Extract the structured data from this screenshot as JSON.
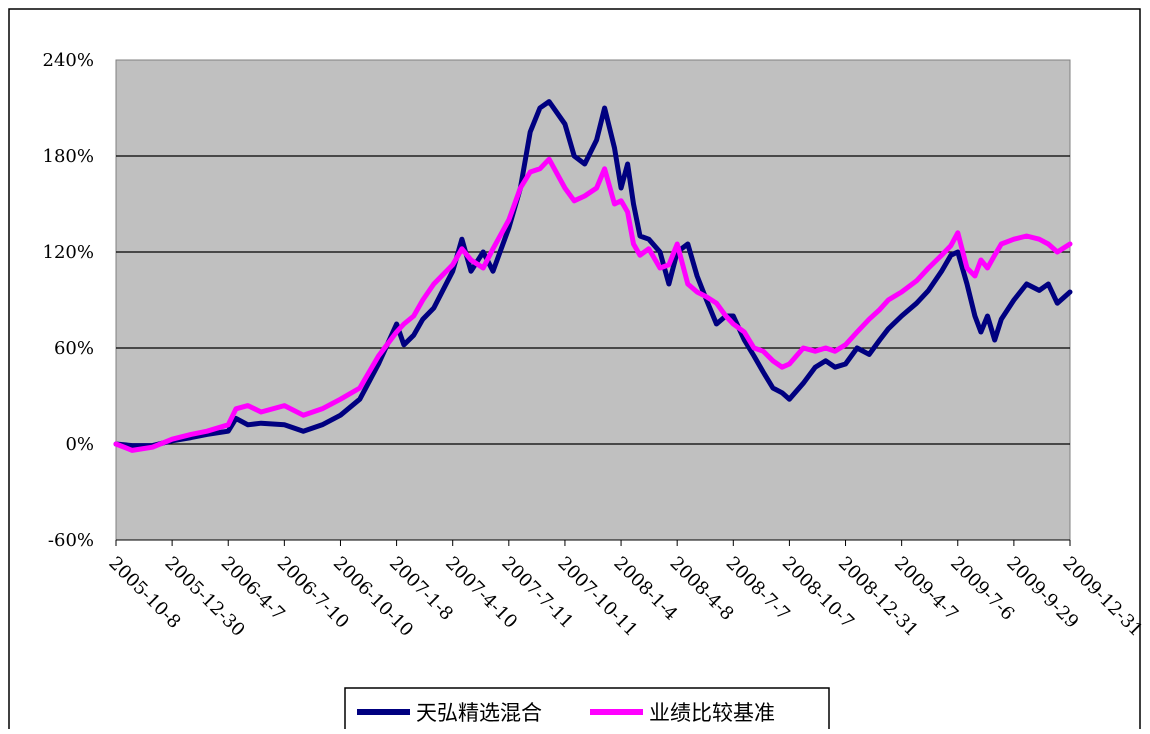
{
  "chart_data": {
    "type": "line",
    "title": "",
    "xlabel": "",
    "ylabel": "",
    "ylim": [
      -60,
      240
    ],
    "y_ticks": [
      -60,
      0,
      60,
      120,
      180,
      240
    ],
    "y_tick_labels": [
      "-60%",
      "0%",
      "60%",
      "120%",
      "180%",
      "240%"
    ],
    "y_unit": "%",
    "x_tick_labels": [
      "2005-10-8",
      "2005-12-30",
      "2006-4-7",
      "2006-7-10",
      "2006-10-10",
      "2007-1-8",
      "2007-4-10",
      "2007-7-11",
      "2007-10-11",
      "2008-1-4",
      "2008-4-8",
      "2008-7-7",
      "2008-10-7",
      "2008-12-31",
      "2009-4-7",
      "2009-7-6",
      "2009-9-29",
      "2009-12-31"
    ],
    "grid": true,
    "legend_position": "bottom",
    "colors": {
      "plot_background": "#c0c0c0",
      "gridline": "#000000"
    },
    "series": [
      {
        "name": "天弘精选混合",
        "color": "#000080",
        "x": [
          "2005-10-8",
          "2005-11-1",
          "2005-12-1",
          "2005-12-30",
          "2006-2-1",
          "2006-3-1",
          "2006-4-7",
          "2006-4-20",
          "2006-5-10",
          "2006-6-1",
          "2006-7-10",
          "2006-8-10",
          "2006-9-10",
          "2006-10-10",
          "2006-11-10",
          "2006-12-10",
          "2007-1-8",
          "2007-1-20",
          "2007-2-5",
          "2007-2-20",
          "2007-3-10",
          "2007-4-10",
          "2007-4-25",
          "2007-5-10",
          "2007-5-30",
          "2007-6-15",
          "2007-7-11",
          "2007-7-30",
          "2007-8-15",
          "2007-8-31",
          "2007-9-15",
          "2007-10-11",
          "2007-10-25",
          "2007-11-10",
          "2007-11-28",
          "2007-12-10",
          "2007-12-25",
          "2008-1-4",
          "2008-1-15",
          "2008-1-25",
          "2008-2-5",
          "2008-2-20",
          "2008-3-10",
          "2008-3-25",
          "2008-4-8",
          "2008-4-25",
          "2008-5-10",
          "2008-5-25",
          "2008-6-10",
          "2008-6-25",
          "2008-7-7",
          "2008-7-25",
          "2008-8-10",
          "2008-8-25",
          "2008-9-10",
          "2008-9-25",
          "2008-10-7",
          "2008-10-28",
          "2008-11-15",
          "2008-12-1",
          "2008-12-15",
          "2008-12-31",
          "2009-1-20",
          "2009-2-10",
          "2009-2-28",
          "2009-3-15",
          "2009-4-7",
          "2009-5-1",
          "2009-5-20",
          "2009-6-10",
          "2009-6-25",
          "2009-7-6",
          "2009-7-20",
          "2009-8-1",
          "2009-8-10",
          "2009-8-20",
          "2009-8-31",
          "2009-9-10",
          "2009-9-29",
          "2009-10-20",
          "2009-11-10",
          "2009-11-25",
          "2009-12-10",
          "2009-12-31"
        ],
        "values": [
          0,
          -1,
          -1,
          2,
          4,
          6,
          8,
          16,
          12,
          13,
          12,
          8,
          12,
          18,
          28,
          50,
          75,
          62,
          68,
          78,
          85,
          108,
          128,
          108,
          120,
          108,
          135,
          160,
          195,
          210,
          214,
          200,
          180,
          175,
          190,
          210,
          185,
          160,
          175,
          150,
          130,
          128,
          120,
          100,
          120,
          125,
          105,
          90,
          75,
          80,
          80,
          65,
          55,
          45,
          35,
          32,
          28,
          38,
          48,
          52,
          48,
          50,
          60,
          56,
          65,
          72,
          80,
          88,
          96,
          108,
          118,
          120,
          100,
          80,
          70,
          80,
          65,
          78,
          90,
          100,
          96,
          100,
          88,
          95
        ]
      },
      {
        "name": "业绩比较基准",
        "color": "#ff00ff",
        "x": [
          "2005-10-8",
          "2005-11-1",
          "2005-12-1",
          "2005-12-30",
          "2006-2-1",
          "2006-3-1",
          "2006-4-7",
          "2006-4-20",
          "2006-5-10",
          "2006-6-1",
          "2006-7-10",
          "2006-8-10",
          "2006-9-10",
          "2006-10-10",
          "2006-11-10",
          "2006-12-10",
          "2007-1-8",
          "2007-1-20",
          "2007-2-5",
          "2007-2-20",
          "2007-3-10",
          "2007-4-10",
          "2007-4-25",
          "2007-5-10",
          "2007-5-30",
          "2007-6-15",
          "2007-7-11",
          "2007-7-30",
          "2007-8-15",
          "2007-8-31",
          "2007-9-15",
          "2007-10-11",
          "2007-10-25",
          "2007-11-10",
          "2007-11-28",
          "2007-12-10",
          "2007-12-25",
          "2008-1-4",
          "2008-1-15",
          "2008-1-25",
          "2008-2-5",
          "2008-2-20",
          "2008-3-10",
          "2008-3-25",
          "2008-4-8",
          "2008-4-25",
          "2008-5-10",
          "2008-5-25",
          "2008-6-10",
          "2008-6-25",
          "2008-7-7",
          "2008-7-25",
          "2008-8-10",
          "2008-8-25",
          "2008-9-10",
          "2008-9-25",
          "2008-10-7",
          "2008-10-28",
          "2008-11-15",
          "2008-12-1",
          "2008-12-15",
          "2008-12-31",
          "2009-1-20",
          "2009-2-10",
          "2009-2-28",
          "2009-3-15",
          "2009-4-7",
          "2009-5-1",
          "2009-5-20",
          "2009-6-10",
          "2009-6-25",
          "2009-7-6",
          "2009-7-20",
          "2009-8-1",
          "2009-8-10",
          "2009-8-20",
          "2009-8-31",
          "2009-9-10",
          "2009-9-29",
          "2009-10-20",
          "2009-11-10",
          "2009-11-25",
          "2009-12-10",
          "2009-12-31"
        ],
        "values": [
          0,
          -4,
          -2,
          3,
          6,
          8,
          12,
          22,
          24,
          20,
          24,
          18,
          22,
          28,
          35,
          55,
          70,
          75,
          80,
          90,
          100,
          112,
          122,
          115,
          110,
          122,
          140,
          160,
          170,
          172,
          178,
          160,
          152,
          155,
          160,
          172,
          150,
          152,
          145,
          125,
          118,
          122,
          110,
          112,
          125,
          100,
          95,
          92,
          88,
          80,
          75,
          70,
          60,
          58,
          52,
          48,
          50,
          60,
          58,
          60,
          58,
          62,
          70,
          78,
          84,
          90,
          95,
          102,
          110,
          118,
          124,
          132,
          110,
          105,
          115,
          110,
          118,
          125,
          128,
          130,
          128,
          125,
          120,
          125
        ]
      }
    ]
  }
}
